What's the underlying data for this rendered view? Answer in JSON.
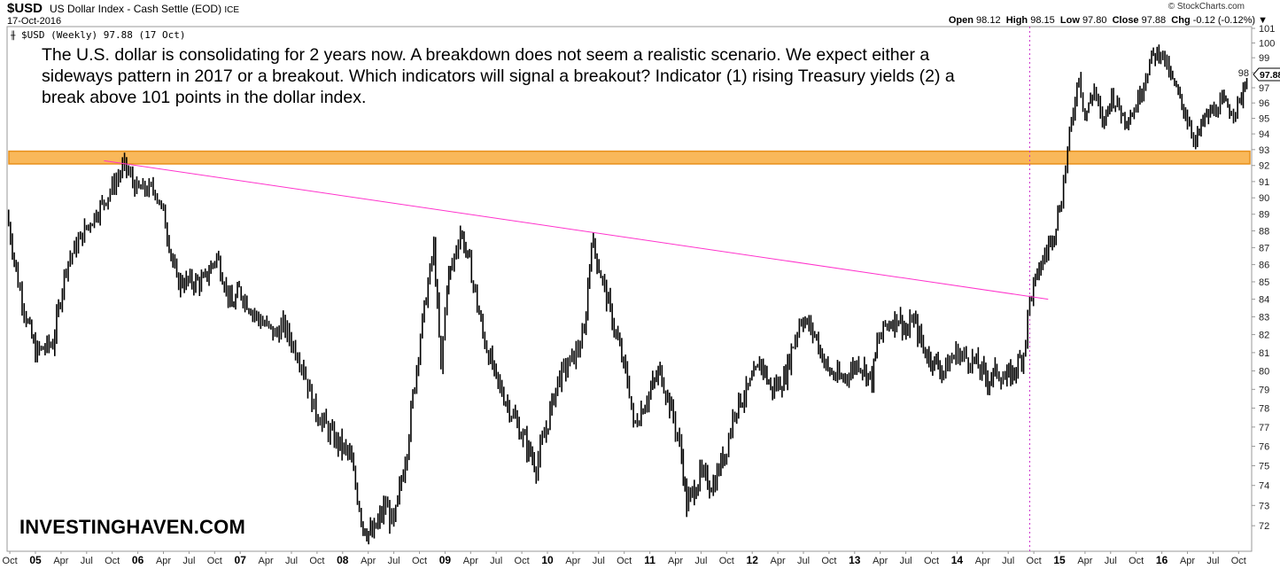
{
  "header": {
    "symbol": "$USD",
    "name": "US Dollar Index - Cash Settle (EOD)",
    "exchange": "ICE",
    "date": "17-Oct-2016",
    "legend": "$USD (Weekly) 97.88 (17 Oct)",
    "credit": "© StockCharts.com",
    "ohlc": {
      "open_label": "Open",
      "open": "98.12",
      "high_label": "High",
      "high": "98.15",
      "low_label": "Low",
      "low": "97.80",
      "close_label": "Close",
      "close": "97.88",
      "chg_label": "Chg",
      "chg": "-0.12 (-0.12%)"
    }
  },
  "annotation": "The U.S. dollar is consolidating for 2 years now. A breakdown does not seem a realistic scenario. We expect either a sideways pattern in 2017 or a breakout. Which indicators will signal a breakout? Indicator (1) rising Treasury yields (2) a break above 101 points in the dollar index.",
  "brand": "INVESTINGHAVEN.COM",
  "chart_data": {
    "type": "ohlc-bar",
    "title": "$USD (Weekly)",
    "scale": "log",
    "ylim": [
      71,
      101.3
    ],
    "xlim": [
      2004.72,
      2016.9
    ],
    "last_value": "97.88",
    "colors": {
      "bars": "#000000",
      "band": "#f9b85a",
      "band_border": "#e8901a",
      "trendline": "#ff33cc",
      "marker": "#cc33cc"
    },
    "y_ticks": [
      101,
      100,
      99,
      98,
      97,
      96,
      95,
      94,
      93,
      92,
      91,
      90,
      89,
      88,
      87,
      86,
      85,
      84,
      83,
      82,
      81,
      80,
      79,
      78,
      77,
      76,
      75,
      74,
      73,
      72
    ],
    "x_ticks": [
      {
        "label": "Oct",
        "t": 2004.75,
        "year": false
      },
      {
        "label": "05",
        "t": 2005.0,
        "year": true
      },
      {
        "label": "Apr",
        "t": 2005.25,
        "year": false
      },
      {
        "label": "Jul",
        "t": 2005.5,
        "year": false
      },
      {
        "label": "Oct",
        "t": 2005.75,
        "year": false
      },
      {
        "label": "06",
        "t": 2006.0,
        "year": true
      },
      {
        "label": "Apr",
        "t": 2006.25,
        "year": false
      },
      {
        "label": "Jul",
        "t": 2006.5,
        "year": false
      },
      {
        "label": "Oct",
        "t": 2006.75,
        "year": false
      },
      {
        "label": "07",
        "t": 2007.0,
        "year": true
      },
      {
        "label": "Apr",
        "t": 2007.25,
        "year": false
      },
      {
        "label": "Jul",
        "t": 2007.5,
        "year": false
      },
      {
        "label": "Oct",
        "t": 2007.75,
        "year": false
      },
      {
        "label": "08",
        "t": 2008.0,
        "year": true
      },
      {
        "label": "Apr",
        "t": 2008.25,
        "year": false
      },
      {
        "label": "Jul",
        "t": 2008.5,
        "year": false
      },
      {
        "label": "Oct",
        "t": 2008.75,
        "year": false
      },
      {
        "label": "09",
        "t": 2009.0,
        "year": true
      },
      {
        "label": "Apr",
        "t": 2009.25,
        "year": false
      },
      {
        "label": "Jul",
        "t": 2009.5,
        "year": false
      },
      {
        "label": "Oct",
        "t": 2009.75,
        "year": false
      },
      {
        "label": "10",
        "t": 2010.0,
        "year": true
      },
      {
        "label": "Apr",
        "t": 2010.25,
        "year": false
      },
      {
        "label": "Jul",
        "t": 2010.5,
        "year": false
      },
      {
        "label": "Oct",
        "t": 2010.75,
        "year": false
      },
      {
        "label": "11",
        "t": 2011.0,
        "year": true
      },
      {
        "label": "Apr",
        "t": 2011.25,
        "year": false
      },
      {
        "label": "Jul",
        "t": 2011.5,
        "year": false
      },
      {
        "label": "Oct",
        "t": 2011.75,
        "year": false
      },
      {
        "label": "12",
        "t": 2012.0,
        "year": true
      },
      {
        "label": "Apr",
        "t": 2012.25,
        "year": false
      },
      {
        "label": "Jul",
        "t": 2012.5,
        "year": false
      },
      {
        "label": "Oct",
        "t": 2012.75,
        "year": false
      },
      {
        "label": "13",
        "t": 2013.0,
        "year": true
      },
      {
        "label": "Apr",
        "t": 2013.25,
        "year": false
      },
      {
        "label": "Jul",
        "t": 2013.5,
        "year": false
      },
      {
        "label": "Oct",
        "t": 2013.75,
        "year": false
      },
      {
        "label": "14",
        "t": 2014.0,
        "year": true
      },
      {
        "label": "Apr",
        "t": 2014.25,
        "year": false
      },
      {
        "label": "Jul",
        "t": 2014.5,
        "year": false
      },
      {
        "label": "Oct",
        "t": 2014.75,
        "year": false
      },
      {
        "label": "15",
        "t": 2015.0,
        "year": true
      },
      {
        "label": "Apr",
        "t": 2015.25,
        "year": false
      },
      {
        "label": "Jul",
        "t": 2015.5,
        "year": false
      },
      {
        "label": "Oct",
        "t": 2015.75,
        "year": false
      },
      {
        "label": "16",
        "t": 2016.0,
        "year": true
      },
      {
        "label": "Apr",
        "t": 2016.25,
        "year": false
      },
      {
        "label": "Jul",
        "t": 2016.5,
        "year": false
      },
      {
        "label": "Oct",
        "t": 2016.75,
        "year": false
      }
    ],
    "series": [
      [
        2004.72,
        89
      ],
      [
        2004.83,
        85
      ],
      [
        2004.91,
        83
      ],
      [
        2005.0,
        81
      ],
      [
        2005.17,
        81.5
      ],
      [
        2005.3,
        86
      ],
      [
        2005.48,
        88
      ],
      [
        2005.69,
        90
      ],
      [
        2005.87,
        92
      ],
      [
        2005.99,
        90.5
      ],
      [
        2006.17,
        90.5
      ],
      [
        2006.25,
        89
      ],
      [
        2006.38,
        85
      ],
      [
        2006.64,
        85
      ],
      [
        2006.77,
        86.5
      ],
      [
        2006.92,
        83.5
      ],
      [
        2006.99,
        84.5
      ],
      [
        2007.16,
        83
      ],
      [
        2007.34,
        82
      ],
      [
        2007.42,
        82.5
      ],
      [
        2007.6,
        80.5
      ],
      [
        2007.72,
        78
      ],
      [
        2007.9,
        76.5
      ],
      [
        2008.07,
        75.5
      ],
      [
        2008.2,
        72
      ],
      [
        2008.29,
        71.5
      ],
      [
        2008.42,
        73
      ],
      [
        2008.5,
        72
      ],
      [
        2008.63,
        76
      ],
      [
        2008.76,
        82
      ],
      [
        2008.89,
        87
      ],
      [
        2008.96,
        80
      ],
      [
        2009.02,
        85
      ],
      [
        2009.07,
        86
      ],
      [
        2009.15,
        88
      ],
      [
        2009.24,
        86
      ],
      [
        2009.37,
        82
      ],
      [
        2009.5,
        79.5
      ],
      [
        2009.63,
        78
      ],
      [
        2009.8,
        76
      ],
      [
        2009.89,
        75
      ],
      [
        2009.97,
        76.5
      ],
      [
        2010.1,
        79.5
      ],
      [
        2010.28,
        81
      ],
      [
        2010.36,
        82
      ],
      [
        2010.43,
        87.5
      ],
      [
        2010.54,
        85
      ],
      [
        2010.67,
        82
      ],
      [
        2010.8,
        79
      ],
      [
        2010.84,
        77
      ],
      [
        2011.01,
        79
      ],
      [
        2011.1,
        80
      ],
      [
        2011.23,
        77.5
      ],
      [
        2011.31,
        75.5
      ],
      [
        2011.36,
        73
      ],
      [
        2011.49,
        74.5
      ],
      [
        2011.62,
        74
      ],
      [
        2011.75,
        76
      ],
      [
        2011.83,
        78
      ],
      [
        2011.96,
        79
      ],
      [
        2012.09,
        80.5
      ],
      [
        2012.18,
        79
      ],
      [
        2012.31,
        79.5
      ],
      [
        2012.4,
        81.5
      ],
      [
        2012.48,
        83
      ],
      [
        2012.61,
        82
      ],
      [
        2012.74,
        80
      ],
      [
        2012.87,
        79.5
      ],
      [
        2013.04,
        80.5
      ],
      [
        2013.17,
        79.5
      ],
      [
        2013.22,
        81.5
      ],
      [
        2013.3,
        82.5
      ],
      [
        2013.43,
        83
      ],
      [
        2013.52,
        82
      ],
      [
        2013.56,
        83
      ],
      [
        2013.69,
        81
      ],
      [
        2013.78,
        80.5
      ],
      [
        2013.87,
        80
      ],
      [
        2013.99,
        81
      ],
      [
        2014.17,
        80.5
      ],
      [
        2014.3,
        79.5
      ],
      [
        2014.39,
        80
      ],
      [
        2014.47,
        79.5
      ],
      [
        2014.56,
        80
      ],
      [
        2014.65,
        81
      ],
      [
        2014.71,
        84
      ],
      [
        2014.82,
        86
      ],
      [
        2014.95,
        88
      ],
      [
        2015.02,
        90
      ],
      [
        2015.08,
        93
      ],
      [
        2015.19,
        98
      ],
      [
        2015.25,
        95
      ],
      [
        2015.34,
        97
      ],
      [
        2015.42,
        94.5
      ],
      [
        2015.51,
        96.5
      ],
      [
        2015.64,
        95
      ],
      [
        2015.73,
        95.5
      ],
      [
        2015.9,
        99
      ],
      [
        2015.99,
        99.5
      ],
      [
        2016.07,
        98
      ],
      [
        2016.16,
        96.5
      ],
      [
        2016.25,
        95
      ],
      [
        2016.33,
        93.5
      ],
      [
        2016.42,
        95
      ],
      [
        2016.51,
        95.5
      ],
      [
        2016.59,
        96
      ],
      [
        2016.68,
        95.5
      ],
      [
        2016.76,
        96
      ],
      [
        2016.83,
        97.88
      ]
    ],
    "resistance_band": [
      92.1,
      92.9
    ],
    "trendline": [
      [
        2005.67,
        92.3
      ],
      [
        2014.89,
        84.0
      ]
    ],
    "marker_date": 2014.71
  }
}
